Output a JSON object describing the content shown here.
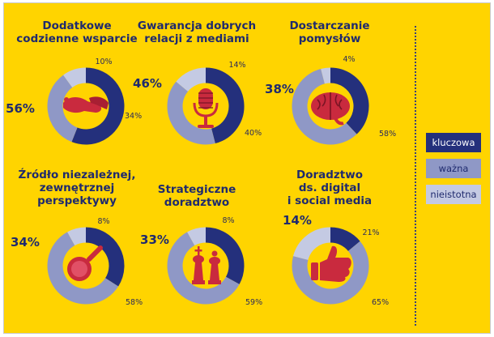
{
  "colors": {
    "background": "#ffd400",
    "kluczowa": "#24307c",
    "wazna": "#8f98c6",
    "nieistotna": "#c4cae3",
    "icon": "#c92a3e"
  },
  "legend": [
    {
      "label": "kluczowa",
      "color": "#24307c",
      "text_color": "#ffffff"
    },
    {
      "label": "ważna",
      "color": "#8f98c6",
      "text_color": "#1f2a6e"
    },
    {
      "label": "nieistotna",
      "color": "#c4cae3",
      "text_color": "#1f2a6e"
    }
  ],
  "chart_data": [
    {
      "type": "pie",
      "title": [
        "Dodatkowe",
        "codzienne wsparcie"
      ],
      "icon": "handshake-icon",
      "labels": [
        "kluczowa",
        "ważna",
        "nieistotna"
      ],
      "values": [
        56,
        34,
        10
      ],
      "value_labels": [
        "56%",
        "34%",
        "10%"
      ]
    },
    {
      "type": "pie",
      "title": [
        "Gwarancja dobrych",
        "relacji z mediami"
      ],
      "icon": "microphone-icon",
      "labels": [
        "kluczowa",
        "ważna",
        "nieistotna"
      ],
      "values": [
        46,
        40,
        14
      ],
      "value_labels": [
        "46%",
        "40%",
        "14%"
      ]
    },
    {
      "type": "pie",
      "title": [
        "Dostarczanie",
        "pomysłów"
      ],
      "icon": "brain-icon",
      "labels": [
        "kluczowa",
        "ważna",
        "nieistotna"
      ],
      "values": [
        38,
        58,
        4
      ],
      "value_labels": [
        "38%",
        "58%",
        "4%"
      ]
    },
    {
      "type": "pie",
      "title": [
        "Źródło niezależnej,",
        "zewnętrznej",
        "perspektywy"
      ],
      "icon": "magnifier-icon",
      "labels": [
        "kluczowa",
        "ważna",
        "nieistotna"
      ],
      "values": [
        34,
        58,
        8
      ],
      "value_labels": [
        "34%",
        "58%",
        "8%"
      ]
    },
    {
      "type": "pie",
      "title": [
        "Strategiczne",
        "doradztwo"
      ],
      "icon": "chess-icon",
      "labels": [
        "kluczowa",
        "ważna",
        "nieistotna"
      ],
      "values": [
        33,
        59,
        8
      ],
      "value_labels": [
        "33%",
        "59%",
        "8%"
      ]
    },
    {
      "type": "pie",
      "title": [
        "Doradztwo",
        "ds. digital",
        "i social media"
      ],
      "icon": "thumbs-up-icon",
      "labels": [
        "kluczowa",
        "ważna",
        "nieistotna"
      ],
      "values": [
        14,
        65,
        21
      ],
      "value_labels": [
        "14%",
        "65%",
        "21%"
      ]
    }
  ]
}
